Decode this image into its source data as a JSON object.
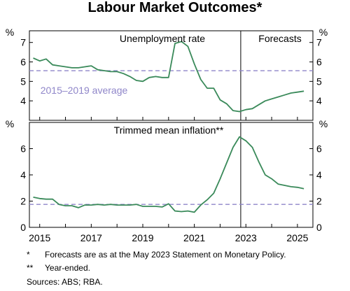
{
  "title": "Labour Market Outcomes*",
  "footnotes": [
    {
      "mark": "*",
      "text": "Forecasts are as at the May 2023 Statement on Monetary Policy."
    },
    {
      "mark": "**",
      "text": "Year-ended."
    }
  ],
  "sources": "Sources: ABS; RBA.",
  "colors": {
    "series": "#3a8a5a",
    "average": "#8f86c9",
    "axis": "#000000"
  },
  "chart_data": [
    {
      "type": "line",
      "title": "Unemployment rate",
      "unit": "%",
      "forecast_label": "Forecasts",
      "forecast_start": 2022.8,
      "xlim": [
        2014.6,
        2025.6
      ],
      "ylim": [
        3,
        7.6
      ],
      "yticks": [
        4,
        5,
        6,
        7
      ],
      "average_label": "2015–2019 average",
      "average_value": 5.55,
      "series": [
        {
          "x": [
            2014.75,
            2015.0,
            2015.25,
            2015.5,
            2015.75,
            2016.0,
            2016.25,
            2016.5,
            2016.75,
            2017.0,
            2017.25,
            2017.5,
            2017.75,
            2018.0,
            2018.25,
            2018.5,
            2018.75,
            2019.0,
            2019.25,
            2019.5,
            2019.75,
            2020.0,
            2020.25,
            2020.5,
            2020.75,
            2021.0,
            2021.25,
            2021.5,
            2021.75,
            2022.0,
            2022.25,
            2022.5,
            2022.75,
            2023.0,
            2023.25,
            2023.5,
            2023.75,
            2024.0,
            2024.25,
            2024.5,
            2024.75,
            2025.0,
            2025.25
          ],
          "y": [
            6.2,
            6.05,
            6.15,
            5.85,
            5.8,
            5.75,
            5.7,
            5.7,
            5.75,
            5.8,
            5.6,
            5.55,
            5.5,
            5.5,
            5.4,
            5.25,
            5.05,
            5.0,
            5.2,
            5.25,
            5.2,
            5.2,
            6.95,
            7.05,
            6.8,
            5.9,
            5.1,
            4.65,
            4.65,
            4.05,
            3.85,
            3.5,
            3.45,
            3.55,
            3.6,
            3.8,
            4.0,
            4.1,
            4.2,
            4.3,
            4.4,
            4.45,
            4.5
          ]
        }
      ]
    },
    {
      "type": "line",
      "title": "Trimmed mean inflation**",
      "unit": "%",
      "forecast_start": 2022.8,
      "xlim": [
        2014.6,
        2025.6
      ],
      "ylim": [
        0,
        8
      ],
      "yticks": [
        0,
        2,
        4,
        6
      ],
      "xticks": [
        2015,
        2017,
        2019,
        2021,
        2023,
        2025
      ],
      "average_value": 1.75,
      "series": [
        {
          "x": [
            2014.75,
            2015.0,
            2015.25,
            2015.5,
            2015.75,
            2016.0,
            2016.25,
            2016.5,
            2016.75,
            2017.0,
            2017.25,
            2017.5,
            2017.75,
            2018.0,
            2018.25,
            2018.5,
            2018.75,
            2019.0,
            2019.25,
            2019.5,
            2019.75,
            2020.0,
            2020.25,
            2020.5,
            2020.75,
            2021.0,
            2021.25,
            2021.5,
            2021.75,
            2022.0,
            2022.25,
            2022.5,
            2022.75,
            2023.0,
            2023.25,
            2023.5,
            2023.75,
            2024.0,
            2024.25,
            2024.5,
            2024.75,
            2025.0,
            2025.25
          ],
          "y": [
            2.3,
            2.2,
            2.15,
            2.15,
            1.75,
            1.65,
            1.65,
            1.5,
            1.7,
            1.7,
            1.75,
            1.7,
            1.75,
            1.7,
            1.7,
            1.7,
            1.75,
            1.6,
            1.6,
            1.6,
            1.55,
            1.8,
            1.25,
            1.2,
            1.25,
            1.15,
            1.7,
            2.1,
            2.6,
            3.7,
            4.9,
            6.1,
            6.9,
            6.6,
            6.1,
            5.0,
            4.0,
            3.7,
            3.3,
            3.2,
            3.1,
            3.05,
            2.95
          ]
        }
      ]
    }
  ]
}
